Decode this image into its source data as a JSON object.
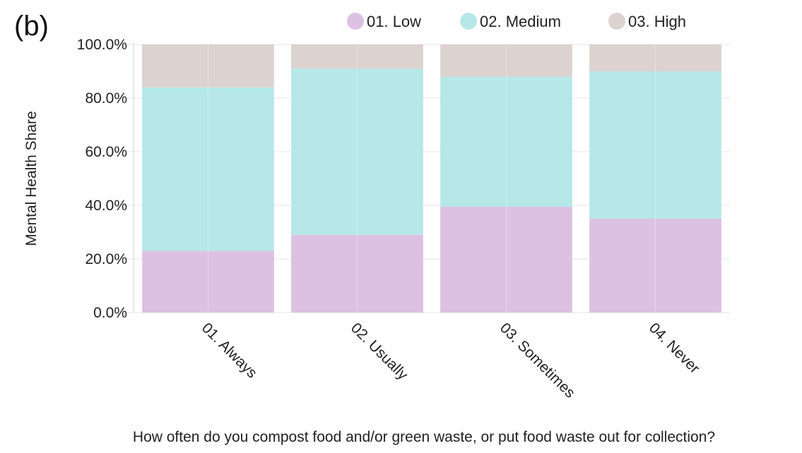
{
  "panel_label": "(b)",
  "chart_data": {
    "type": "bar",
    "stacked": true,
    "normalized": true,
    "categories": [
      "01. Always",
      "02. Usually",
      "03. Sometimes",
      "04. Never"
    ],
    "series": [
      {
        "name": "01. Low",
        "color": "#dcc1e3",
        "values": [
          23.0,
          29.0,
          39.5,
          35.0
        ]
      },
      {
        "name": "02. Medium",
        "color": "#b6e8e8",
        "values": [
          61.0,
          62.0,
          48.5,
          55.0
        ]
      },
      {
        "name": "03. High",
        "color": "#dcd2cf",
        "values": [
          16.0,
          9.0,
          12.0,
          10.0
        ]
      }
    ],
    "yticks": [
      "0.0%",
      "20.0%",
      "40.0%",
      "60.0%",
      "80.0%",
      "100.0%"
    ],
    "ylim": [
      0,
      100
    ],
    "ylabel": "Mental Health Share",
    "xlabel": "How often do you compost food and/or green waste, or put food waste out for collection?",
    "legend_position": "top",
    "grid": true
  }
}
